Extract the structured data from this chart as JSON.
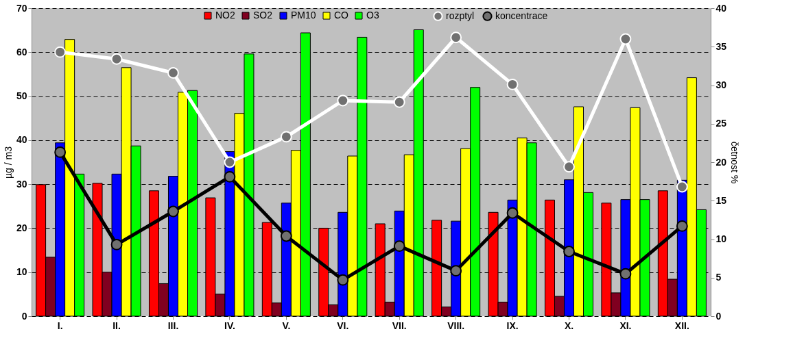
{
  "chart_data": {
    "type": "bar",
    "ylabel": "µg / m3",
    "y2label": "četnost %",
    "categories": [
      "I.",
      "II.",
      "III.",
      "IV.",
      "V.",
      "VI.",
      "VII.",
      "VIII.",
      "IX.",
      "X.",
      "XI.",
      "XII."
    ],
    "series": [
      {
        "name": "NO2",
        "color": "#ff0000",
        "values": [
          29.9,
          30.2,
          28.5,
          26.9,
          21.3,
          20.0,
          21.0,
          21.8,
          23.6,
          26.4,
          25.7,
          28.5
        ]
      },
      {
        "name": "SO2",
        "color": "#800020",
        "values": [
          13.4,
          10.0,
          7.4,
          5.0,
          3.0,
          2.6,
          3.2,
          2.1,
          3.2,
          4.5,
          5.3,
          8.4
        ]
      },
      {
        "name": "PM10",
        "color": "#0000ff",
        "values": [
          39.4,
          32.3,
          31.8,
          37.4,
          25.7,
          23.6,
          23.9,
          21.6,
          26.4,
          31.0,
          26.5,
          30.9
        ]
      },
      {
        "name": "CO",
        "color": "#ffff00",
        "values": [
          62.9,
          56.5,
          50.9,
          46.1,
          37.7,
          36.4,
          36.7,
          38.1,
          40.5,
          47.6,
          47.4,
          54.2
        ]
      },
      {
        "name": "O3",
        "color": "#00ff00",
        "values": [
          32.3,
          38.7,
          51.3,
          59.6,
          64.4,
          63.4,
          65.1,
          52.0,
          39.4,
          28.1,
          26.5,
          24.2
        ]
      },
      {
        "name": "rozptyl",
        "type": "line",
        "axis": "y2",
        "color": "#ffffff",
        "values": [
          34.3,
          33.4,
          31.6,
          20.0,
          23.3,
          28.0,
          27.8,
          36.2,
          30.1,
          19.4,
          36.0,
          16.8
        ]
      },
      {
        "name": "koncentrace",
        "type": "line",
        "axis": "y2",
        "color": "#000000",
        "values": [
          21.3,
          9.3,
          13.6,
          18.1,
          10.4,
          4.7,
          9.1,
          5.9,
          13.4,
          8.4,
          5.5,
          11.7
        ]
      }
    ],
    "ylim": [
      0,
      70
    ],
    "yticks": [
      0,
      10,
      20,
      30,
      40,
      50,
      60,
      70
    ],
    "y2lim": [
      0,
      40
    ],
    "y2ticks": [
      0,
      5,
      10,
      15,
      20,
      25,
      30,
      35,
      40
    ],
    "grid": "y",
    "legend": "top",
    "marker": "circle",
    "line_style": "solid"
  }
}
